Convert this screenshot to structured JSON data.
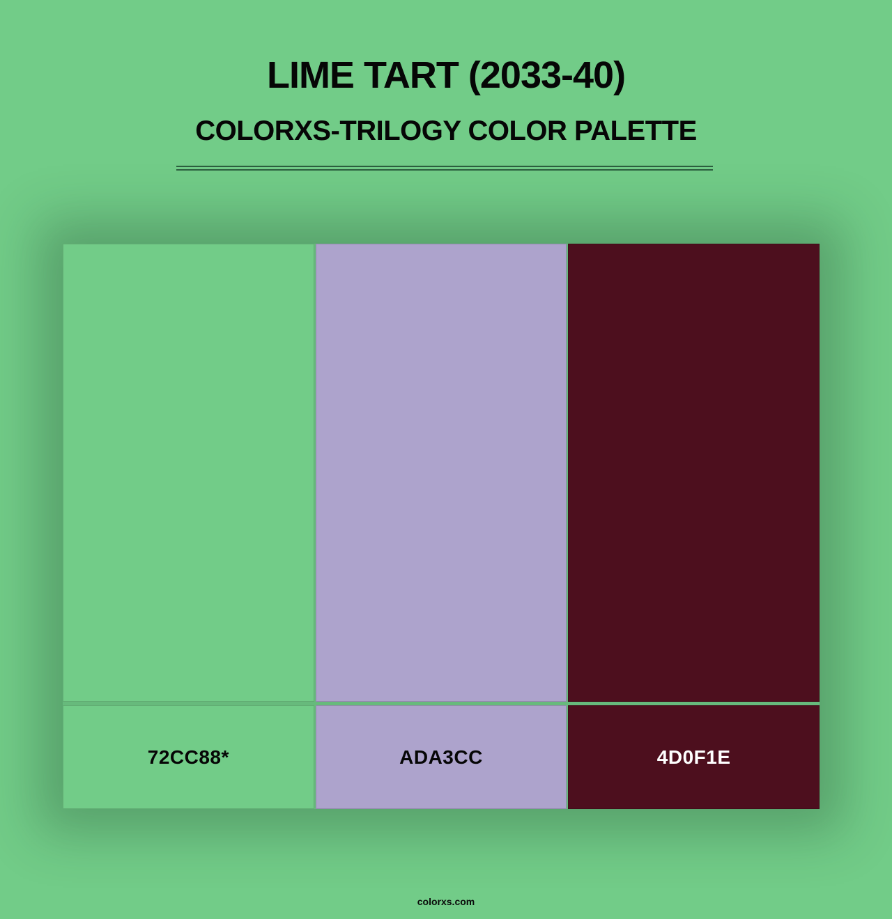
{
  "page": {
    "title": "LIME TART (2033-40)",
    "subtitle": "COLORXS-TRILOGY COLOR PALETTE",
    "footer": "colorxs.com",
    "background_color": "#72CC88",
    "divider_color": "#2D5F3F"
  },
  "palette": {
    "swatches": [
      {
        "name": "lime-tart-green",
        "hex": "#72CC88",
        "label": "72CC88*",
        "label_text_color": "#060606"
      },
      {
        "name": "lavender",
        "hex": "#ADA3CC",
        "label": "ADA3CC",
        "label_text_color": "#060606"
      },
      {
        "name": "dark-maroon",
        "hex": "#4D0F1E",
        "label": "4D0F1E",
        "label_text_color": "#FFFFFF"
      }
    ]
  }
}
